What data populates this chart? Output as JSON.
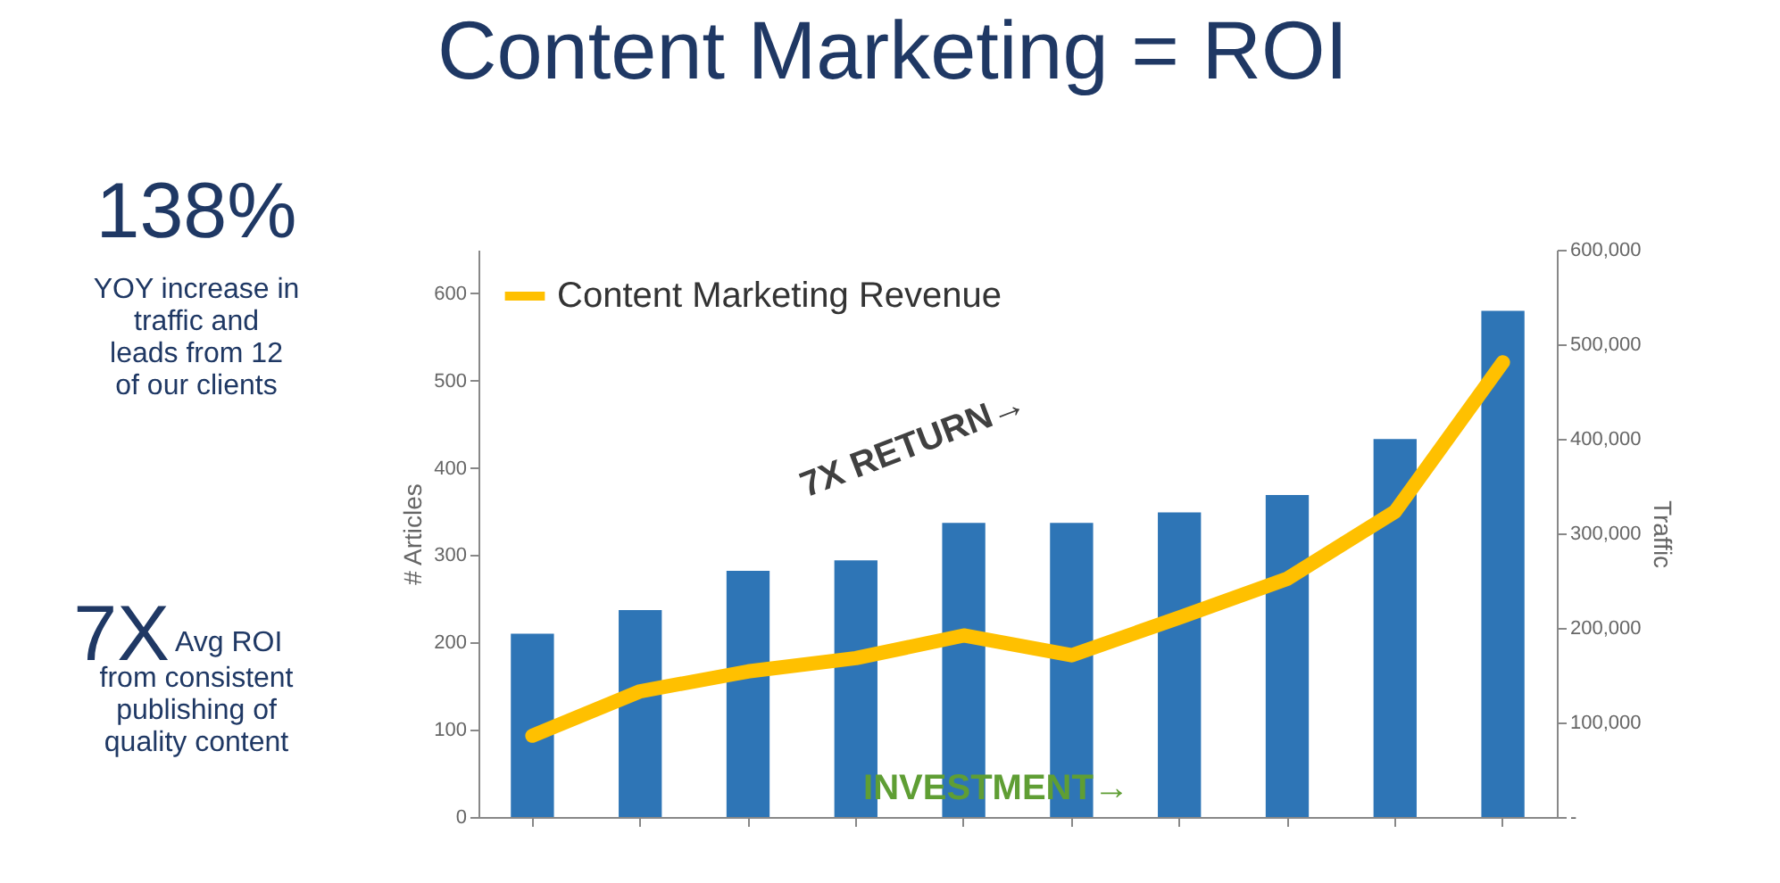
{
  "chart_data": {
    "type": "bar",
    "title": "Content Marketing = ROI",
    "ylabel": "# Articles",
    "y2label": "Traffic",
    "categories": [
      null,
      null,
      null,
      null,
      null,
      null,
      null,
      null,
      null,
      null
    ],
    "series": [
      {
        "color": "#2e75b6",
        "values": [
          210,
          237,
          282,
          294,
          337,
          337,
          349,
          369,
          433,
          580
        ]
      },
      {
        "type": "line",
        "name": "Content Marketing Revenue",
        "color": "#ffc000",
        "axis": "y2",
        "values": [
          86000,
          133000,
          154000,
          168000,
          192000,
          171000,
          211000,
          252000,
          323000,
          481000
        ]
      }
    ],
    "ylim": [
      0,
      650
    ],
    "yticks": [
      0,
      100,
      200,
      300,
      400,
      500,
      600
    ],
    "y2lim": [
      0,
      600000
    ],
    "y2ticks": [
      {
        "value": 0,
        "label": "-"
      },
      {
        "value": 100000,
        "label": "100,000"
      },
      {
        "value": 200000,
        "label": "200,000"
      },
      {
        "value": 300000,
        "label": "300,000"
      },
      {
        "value": 400000,
        "label": "400,000"
      },
      {
        "value": 500000,
        "label": "500,000"
      },
      {
        "value": 600000,
        "label": "600,000"
      }
    ],
    "grid": false,
    "legend": "top left",
    "line_style": "solid",
    "annotations": [
      "138%",
      "YOY increase in traffic and leads from 12 of our clients",
      "7X",
      "Avg ROI",
      "from consistent publishing of quality content",
      "7X RETURN→",
      "INVESTMENT→"
    ]
  }
}
